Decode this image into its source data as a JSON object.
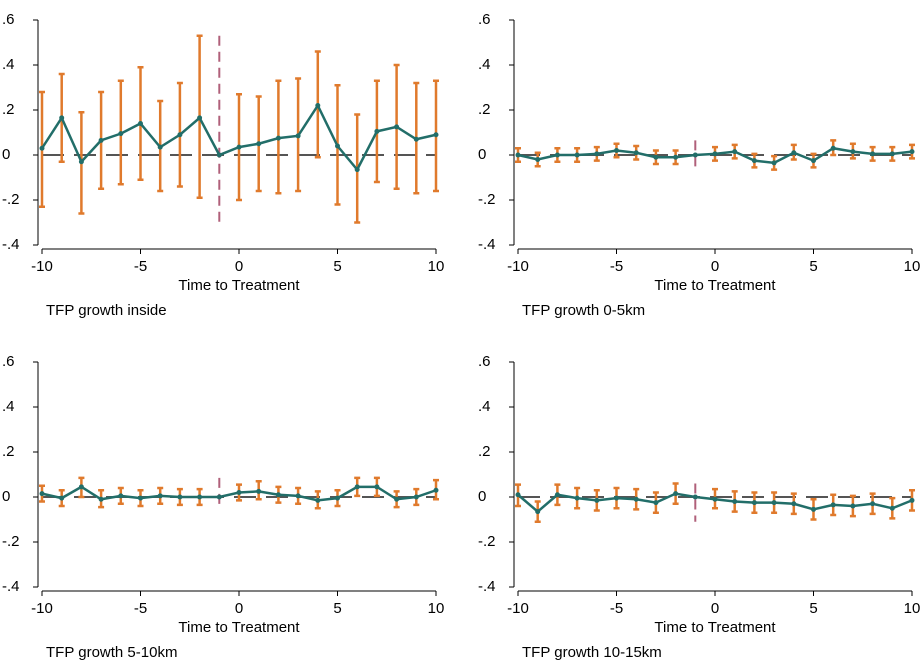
{
  "chart_data": [
    {
      "type": "errorbar_line",
      "title": "TFP growth inside",
      "xlabel": "Time to Treatment",
      "x": [
        -10,
        -9,
        -8,
        -7,
        -6,
        -5,
        -4,
        -3,
        -2,
        -1,
        0,
        1,
        2,
        3,
        4,
        5,
        6,
        7,
        8,
        9,
        10
      ],
      "values": [
        0.03,
        0.165,
        -0.03,
        0.065,
        0.095,
        0.14,
        0.035,
        0.09,
        0.165,
        0,
        0.035,
        0.05,
        0.075,
        0.085,
        0.22,
        0.04,
        -0.065,
        0.105,
        0.125,
        0.07,
        0.09
      ],
      "ci_lower": [
        -0.23,
        -0.03,
        -0.26,
        -0.15,
        -0.13,
        -0.11,
        -0.16,
        -0.14,
        -0.19,
        null,
        -0.2,
        -0.16,
        -0.17,
        -0.16,
        -0.01,
        -0.22,
        -0.3,
        -0.12,
        -0.15,
        -0.17,
        -0.16
      ],
      "ci_upper": [
        0.28,
        0.36,
        0.19,
        0.28,
        0.33,
        0.39,
        0.24,
        0.32,
        0.53,
        null,
        0.27,
        0.26,
        0.33,
        0.34,
        0.46,
        0.31,
        0.18,
        0.33,
        0.4,
        0.32,
        0.33
      ],
      "xlim": [
        -10,
        10
      ],
      "xticks": [
        -10,
        -5,
        0,
        5,
        10
      ],
      "ylim": [
        -0.4,
        0.6
      ],
      "yticks": [
        {
          "value": -0.4,
          "label": "-.4"
        },
        {
          "value": -0.2,
          "label": "-.2"
        },
        0,
        {
          "value": 0.2,
          "label": ".2"
        },
        {
          "value": 0.4,
          "label": ".4"
        },
        {
          "value": 0.6,
          "label": ".6"
        }
      ],
      "hline": 0,
      "vline": -1,
      "color": "#226e69",
      "ci_color": "#e07a2c"
    },
    {
      "type": "errorbar_line",
      "title": "TFP growth 0-5km",
      "xlabel": "Time to Treatment",
      "x": [
        -10,
        -9,
        -8,
        -7,
        -6,
        -5,
        -4,
        -3,
        -2,
        -1,
        0,
        1,
        2,
        3,
        4,
        5,
        6,
        7,
        8,
        9,
        10
      ],
      "values": [
        0,
        -0.02,
        0,
        0,
        0.005,
        0.02,
        0.01,
        -0.01,
        -0.01,
        0,
        0.005,
        0.015,
        -0.025,
        -0.035,
        0.01,
        -0.025,
        0.03,
        0.015,
        0.005,
        0.005,
        0.015
      ],
      "ci_lower": [
        -0.03,
        -0.05,
        -0.03,
        -0.03,
        -0.025,
        -0.01,
        -0.02,
        -0.04,
        -0.04,
        null,
        -0.025,
        -0.015,
        -0.055,
        -0.065,
        -0.02,
        -0.055,
        0,
        -0.015,
        -0.025,
        -0.025,
        -0.015
      ],
      "ci_upper": [
        0.03,
        0.01,
        0.03,
        0.03,
        0.035,
        0.05,
        0.04,
        0.02,
        0.02,
        null,
        0.035,
        0.045,
        0.005,
        -0.005,
        0.045,
        0.005,
        0.065,
        0.05,
        0.035,
        0.035,
        0.045
      ],
      "xlim": [
        -10,
        10
      ],
      "xticks": [
        -10,
        -5,
        0,
        5,
        10
      ],
      "ylim": [
        -0.4,
        0.6
      ],
      "yticks": [
        {
          "value": -0.4,
          "label": "-.4"
        },
        {
          "value": -0.2,
          "label": "-.2"
        },
        0,
        {
          "value": 0.2,
          "label": ".2"
        },
        {
          "value": 0.4,
          "label": ".4"
        },
        {
          "value": 0.6,
          "label": ".6"
        }
      ],
      "hline": 0,
      "vline": -1,
      "color": "#226e69",
      "ci_color": "#e07a2c"
    },
    {
      "type": "errorbar_line",
      "title": "TFP growth 5-10km",
      "xlabel": "Time to Treatment",
      "x": [
        -10,
        -9,
        -8,
        -7,
        -6,
        -5,
        -4,
        -3,
        -2,
        -1,
        0,
        1,
        2,
        3,
        4,
        5,
        6,
        7,
        8,
        9,
        10
      ],
      "values": [
        0.015,
        -0.005,
        0.045,
        -0.01,
        0.005,
        -0.005,
        0.005,
        0,
        0,
        0,
        0.02,
        0.025,
        0.01,
        0.005,
        -0.015,
        -0.005,
        0.045,
        0.045,
        -0.01,
        0,
        0.03
      ],
      "ci_lower": [
        -0.02,
        -0.04,
        0,
        -0.045,
        -0.03,
        -0.04,
        -0.03,
        -0.035,
        -0.035,
        null,
        -0.015,
        -0.01,
        -0.025,
        -0.03,
        -0.05,
        -0.04,
        0.005,
        0.005,
        -0.045,
        -0.035,
        -0.01
      ],
      "ci_upper": [
        0.05,
        0.03,
        0.085,
        0.03,
        0.04,
        0.03,
        0.04,
        0.035,
        0.035,
        null,
        0.055,
        0.07,
        0.045,
        0.04,
        0.025,
        0.03,
        0.085,
        0.085,
        0.025,
        0.035,
        0.075
      ],
      "xlim": [
        -10,
        10
      ],
      "xticks": [
        -10,
        -5,
        0,
        5,
        10
      ],
      "ylim": [
        -0.4,
        0.6
      ],
      "yticks": [
        {
          "value": -0.4,
          "label": "-.4"
        },
        {
          "value": -0.2,
          "label": "-.2"
        },
        0,
        {
          "value": 0.2,
          "label": ".2"
        },
        {
          "value": 0.4,
          "label": ".4"
        },
        {
          "value": 0.6,
          "label": ".6"
        }
      ],
      "hline": 0,
      "vline": -1,
      "color": "#226e69",
      "ci_color": "#e07a2c"
    },
    {
      "type": "errorbar_line",
      "title": "TFP growth 10-15km",
      "xlabel": "Time to Treatment",
      "x": [
        -10,
        -9,
        -8,
        -7,
        -6,
        -5,
        -4,
        -3,
        -2,
        -1,
        0,
        1,
        2,
        3,
        4,
        5,
        6,
        7,
        8,
        9,
        10
      ],
      "values": [
        0.01,
        -0.065,
        0.01,
        -0.005,
        -0.015,
        -0.005,
        -0.01,
        -0.025,
        0.015,
        0,
        -0.01,
        -0.02,
        -0.025,
        -0.025,
        -0.03,
        -0.055,
        -0.035,
        -0.04,
        -0.03,
        -0.05,
        -0.015
      ],
      "ci_lower": [
        -0.04,
        -0.11,
        -0.035,
        -0.05,
        -0.06,
        -0.05,
        -0.055,
        -0.07,
        -0.03,
        null,
        -0.05,
        -0.065,
        -0.07,
        -0.07,
        -0.075,
        -0.1,
        -0.08,
        -0.085,
        -0.075,
        -0.095,
        -0.06
      ],
      "ci_upper": [
        0.055,
        -0.02,
        0.055,
        0.04,
        0.03,
        0.04,
        0.035,
        0.02,
        0.06,
        null,
        0.035,
        0.025,
        0.02,
        0.02,
        0.015,
        -0.01,
        0.01,
        0.005,
        0.015,
        -0.005,
        0.03
      ],
      "xlim": [
        -10,
        10
      ],
      "xticks": [
        -10,
        -5,
        0,
        5,
        10
      ],
      "ylim": [
        -0.4,
        0.6
      ],
      "yticks": [
        {
          "value": -0.4,
          "label": "-.4"
        },
        {
          "value": -0.2,
          "label": "-.2"
        },
        0,
        {
          "value": 0.2,
          "label": ".2"
        },
        {
          "value": 0.4,
          "label": ".4"
        },
        {
          "value": 0.6,
          "label": ".6"
        }
      ],
      "hline": 0,
      "vline": -1,
      "color": "#226e69",
      "ci_color": "#e07a2c"
    }
  ]
}
